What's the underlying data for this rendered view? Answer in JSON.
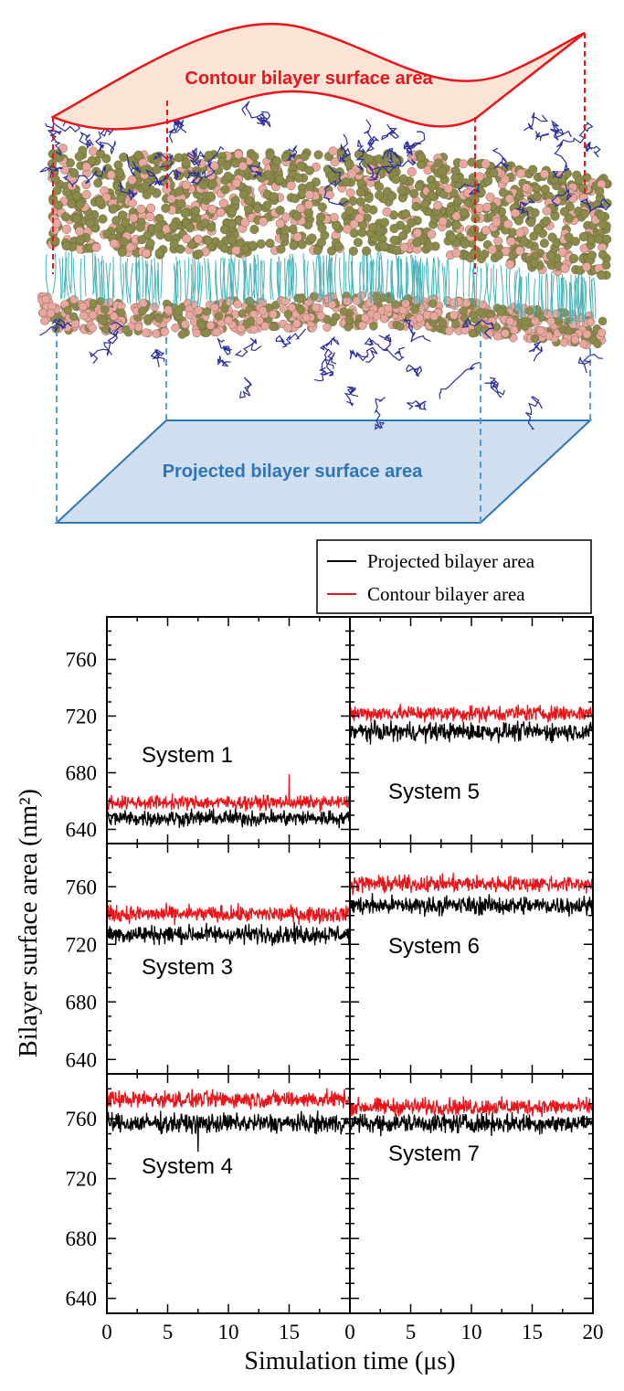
{
  "illustration": {
    "contour_label": "Contour bilayer surface area",
    "projected_label": "Projected bilayer surface area",
    "colors": {
      "contour": "#e8151b",
      "contour_fill": "#fbe3d6",
      "projected": "#2e75b6",
      "projected_fill": "#cfdff0",
      "headgroup_a": "#8a8a4a",
      "headgroup_b": "#e9a7a0",
      "tails": "#46b3b9",
      "chains": "#2a2f9c"
    }
  },
  "chart_data": {
    "type": "line",
    "ylabel": "Bilayer surface area (nm²)",
    "xlabel": "Simulation time (μs)",
    "xlim": [
      0,
      20
    ],
    "ylim": [
      630,
      790
    ],
    "yticks": [
      640,
      680,
      720,
      760
    ],
    "xticks": [
      0,
      5,
      10,
      15,
      20
    ],
    "x_tick_labels": [
      "0",
      "5",
      "10",
      "15",
      "0",
      "5",
      "10",
      "15",
      "20"
    ],
    "grid": false,
    "legend": {
      "placement": "top-right",
      "entries": [
        {
          "label": "Projected bilayer area",
          "color": "#000000"
        },
        {
          "label": "Contour bilayer area",
          "color": "#e8151b"
        }
      ]
    },
    "panels": [
      {
        "label": "System 1",
        "column": 0,
        "row": 0,
        "series": [
          {
            "name": "Projected bilayer area",
            "color": "#000000",
            "mean": 648,
            "noise": 3.5
          },
          {
            "name": "Contour bilayer area",
            "color": "#e8151b",
            "mean": 659,
            "noise": 3,
            "spikes": [
              [
                15,
                679
              ]
            ]
          }
        ]
      },
      {
        "label": "System 5",
        "column": 1,
        "row": 0,
        "series": [
          {
            "name": "Projected bilayer area",
            "color": "#000000",
            "mean": 709,
            "noise": 4
          },
          {
            "name": "Contour bilayer area",
            "color": "#e8151b",
            "mean": 722,
            "noise": 3.5
          }
        ]
      },
      {
        "label": "System 3",
        "column": 0,
        "row": 1,
        "series": [
          {
            "name": "Projected bilayer area",
            "color": "#000000",
            "mean": 727,
            "noise": 4
          },
          {
            "name": "Contour bilayer area",
            "color": "#e8151b",
            "mean": 741,
            "noise": 3.5
          }
        ]
      },
      {
        "label": "System 6",
        "column": 1,
        "row": 1,
        "series": [
          {
            "name": "Projected bilayer area",
            "color": "#000000",
            "mean": 747,
            "noise": 4
          },
          {
            "name": "Contour bilayer area",
            "color": "#e8151b",
            "mean": 762,
            "noise": 3.5
          }
        ]
      },
      {
        "label": "System 4",
        "column": 0,
        "row": 2,
        "series": [
          {
            "name": "Projected bilayer area",
            "color": "#000000",
            "mean": 757,
            "noise": 4,
            "spikes": [
              [
                7.5,
                738
              ]
            ]
          },
          {
            "name": "Contour bilayer area",
            "color": "#e8151b",
            "mean": 773,
            "noise": 3.5
          }
        ]
      },
      {
        "label": "System 7",
        "column": 1,
        "row": 2,
        "series": [
          {
            "name": "Projected bilayer area",
            "color": "#000000",
            "mean": 757,
            "noise": 4
          },
          {
            "name": "Contour bilayer area",
            "color": "#e8151b",
            "mean": 768,
            "noise": 3.5
          }
        ]
      }
    ]
  }
}
